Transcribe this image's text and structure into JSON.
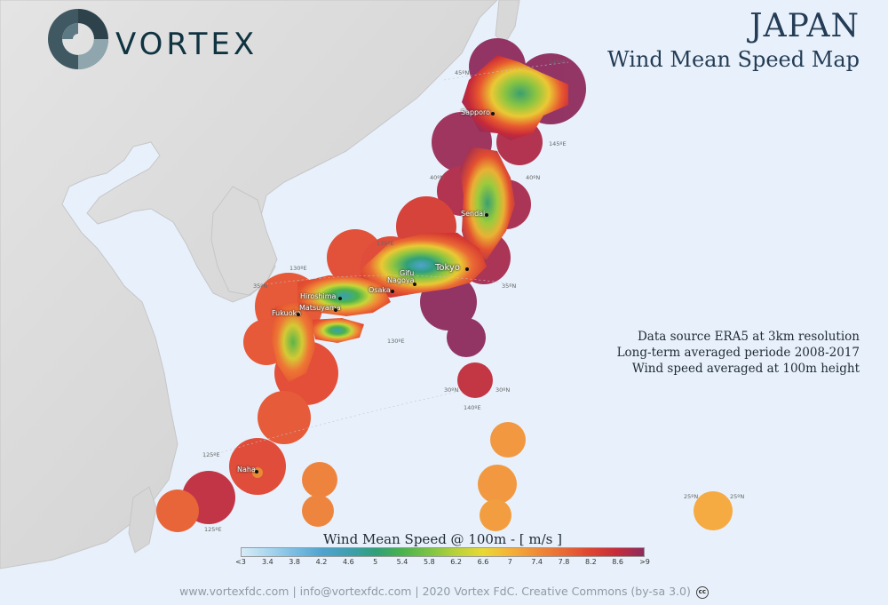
{
  "brand": {
    "name": "VORTEX"
  },
  "header": {
    "title": "JAPAN",
    "subtitle": "Wind Mean Speed Map"
  },
  "notes": [
    "Data source ERA5 at 3km resolution",
    "Long-term averaged periode 2008-2017",
    "Wind speed averaged at 100m height"
  ],
  "legend": {
    "title": "Wind Mean Speed @ 100m - [ m/s ]",
    "ticks": [
      "<3",
      "3.4",
      "3.8",
      "4.2",
      "4.6",
      "5",
      "5.4",
      "5.8",
      "6.2",
      "6.6",
      "7",
      "7.4",
      "7.8",
      "8.2",
      "8.6",
      ">9"
    ],
    "colors": [
      "#d7ecf8",
      "#a9d6ef",
      "#78bce2",
      "#4fa3cf",
      "#3f9fb0",
      "#2fa07a",
      "#4ab34d",
      "#7cc444",
      "#b9d23a",
      "#e8d935",
      "#f5b237",
      "#f08c37",
      "#ea6a34",
      "#df4430",
      "#c52c3a",
      "#8e2b5e"
    ]
  },
  "cities": [
    {
      "name": "Sapporo"
    },
    {
      "name": "Sendai"
    },
    {
      "name": "Tokyo"
    },
    {
      "name": "Nagoya"
    },
    {
      "name": "Gifu"
    },
    {
      "name": "Osaka"
    },
    {
      "name": "Hiroshima"
    },
    {
      "name": "Matsuyama"
    },
    {
      "name": "Fukuoka"
    },
    {
      "name": "Naha"
    }
  ],
  "grid_labels": [
    "45ºN",
    "145ºE",
    "145ºE",
    "40ºN",
    "40ºN",
    "135ºE",
    "130ºE",
    "35ºN",
    "35ºN",
    "30ºN",
    "30ºN",
    "140ºE",
    "125ºE",
    "125ºE",
    "25ºN",
    "25ºN",
    "130ºE"
  ],
  "footer": {
    "text": "www.vortexfdc.com | info@vortexfdc.com | 2020 Vortex FdC.  Creative Commons (by-sa 3.0)",
    "cc": "cc"
  }
}
